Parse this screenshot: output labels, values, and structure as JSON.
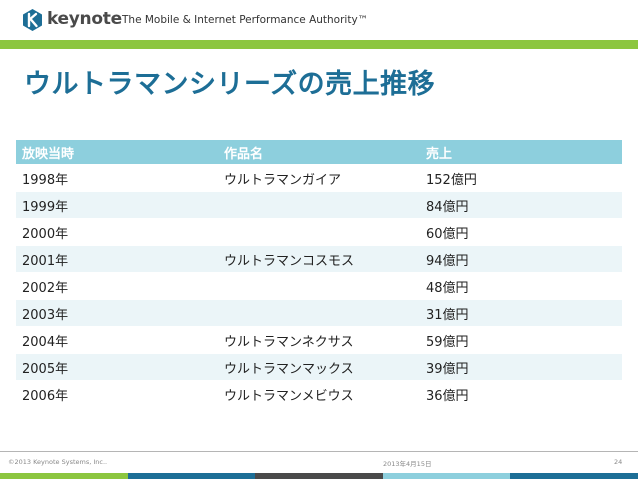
{
  "header": {
    "logo_text": "keynote",
    "tagline": "The Mobile & Internet Performance Authority™"
  },
  "title": "ウルトラマンシリーズの売上推移",
  "table": {
    "headers": [
      "放映当時",
      "作品名",
      "売上"
    ],
    "rows": [
      [
        "1998年",
        "ウルトラマンガイア",
        "152億円"
      ],
      [
        "1999年",
        "",
        "84億円"
      ],
      [
        "2000年",
        "",
        "60億円"
      ],
      [
        "2001年",
        "ウルトラマンコスモス",
        "94億円"
      ],
      [
        "2002年",
        "",
        "48億円"
      ],
      [
        "2003年",
        "",
        "31億円"
      ],
      [
        "2004年",
        "ウルトラマンネクサス",
        "59億円"
      ],
      [
        "2005年",
        "ウルトラマンマックス",
        "39億円"
      ],
      [
        "2006年",
        "ウルトラマンメビウス",
        "36億円"
      ]
    ]
  },
  "footer": {
    "copyright": "©2013 Keynote Systems, Inc..",
    "date": "2013年4月15日",
    "page": "24"
  },
  "colors": {
    "brand_green": "#8cc63f",
    "title_blue": "#1d6e96",
    "header_teal": "#8dcfdd",
    "row_alt": "#ebf5f8",
    "bottom_bar": [
      "#8cc63f",
      "#1d6e96",
      "#4a4a4a",
      "#8dcfdd",
      "#1d6e96"
    ]
  }
}
